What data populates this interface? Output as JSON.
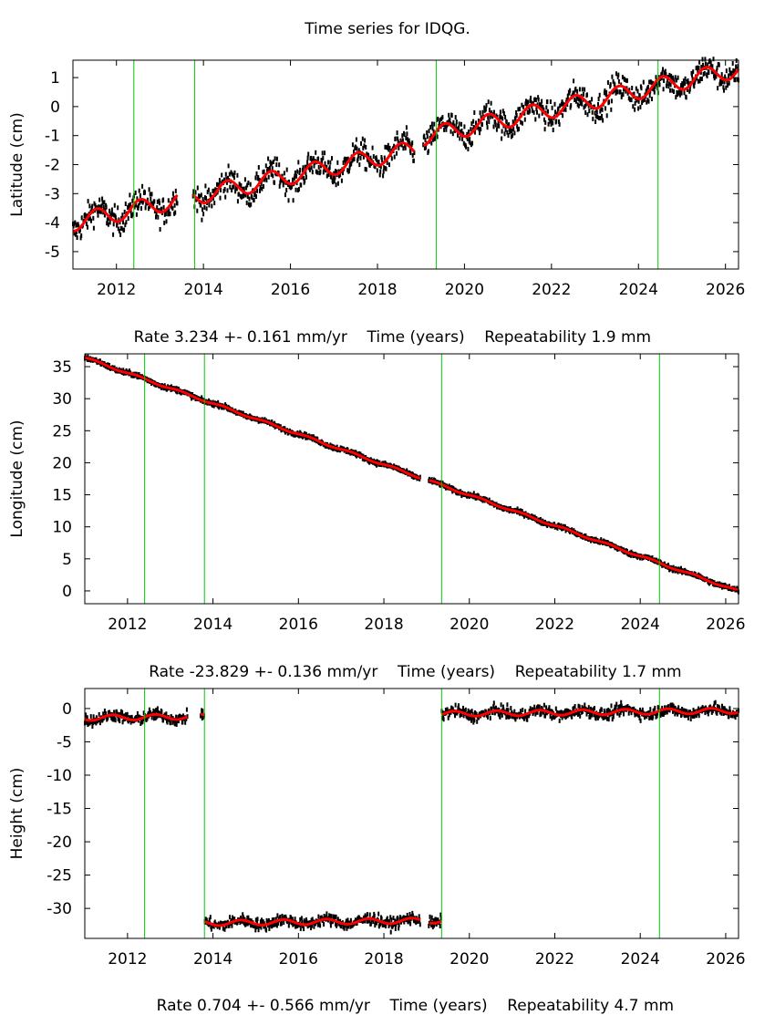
{
  "title": "Time series for IDQG.",
  "colors": {
    "data": "#000000",
    "model": "#ff0000",
    "offset_lines": "#00c800",
    "frame": "#000000"
  },
  "chart_data": [
    {
      "type": "scatter",
      "ylabel": "Latitude (cm)",
      "xlabel": "Time (years)",
      "caption": {
        "rate": "Rate 3.234 +- 0.161 mm/yr",
        "xlabel": "Time (years)",
        "repeatability": "Repeatability 1.9 mm"
      },
      "xlim": [
        2011.0,
        2026.3
      ],
      "ylim": [
        -5.6,
        1.6
      ],
      "xticks": [
        "2012",
        "2014",
        "2016",
        "2018",
        "2020",
        "2022",
        "2024",
        "2026"
      ],
      "yticks": [
        "1",
        "0",
        "-1",
        "-2",
        "-3",
        "-4",
        "-5"
      ],
      "offsets": [
        2012.4,
        2013.8,
        2019.35,
        2024.45
      ],
      "gaps": [
        [
          2013.4,
          2013.75
        ],
        [
          2018.85,
          2019.05
        ]
      ],
      "model_start": -4.0,
      "rate_cm_per_yr": 0.3234,
      "annual_amplitude": 0.3,
      "annual_phase": 2012.3,
      "segment_shifts": [
        {
          "after": 2019.0,
          "shift": 0.35
        }
      ],
      "scatter_cm": 0.45
    },
    {
      "type": "scatter",
      "ylabel": "Longitude (cm)",
      "xlabel": "Time (years)",
      "caption": {
        "rate": "Rate -23.829 +- 0.136 mm/yr",
        "xlabel": "Time (years)",
        "repeatability": "Repeatability 1.7 mm"
      },
      "xlim": [
        2011.0,
        2026.3
      ],
      "ylim": [
        -2.0,
        37.0
      ],
      "xticks": [
        "2012",
        "2014",
        "2016",
        "2018",
        "2020",
        "2022",
        "2024",
        "2026"
      ],
      "yticks": [
        "35",
        "30",
        "25",
        "20",
        "15",
        "10",
        "5",
        "0"
      ],
      "offsets": [
        2012.4,
        2013.8,
        2019.35,
        2024.45
      ],
      "gaps": [
        [
          2018.85,
          2019.05
        ]
      ],
      "model_start": 36.4,
      "rate_cm_per_yr": -2.3829,
      "annual_amplitude": 0.15,
      "annual_phase": 2012.0,
      "segment_shifts": [],
      "scatter_cm": 0.3
    },
    {
      "type": "scatter",
      "ylabel": "Height (cm)",
      "xlabel": "Time (years)",
      "caption": {
        "rate": "Rate 0.704 +- 0.566 mm/yr",
        "xlabel": "Time (years)",
        "repeatability": "Repeatability 4.7 mm"
      },
      "xlim": [
        2011.0,
        2026.3
      ],
      "ylim": [
        -34.5,
        3.0
      ],
      "xticks": [
        "2012",
        "2014",
        "2016",
        "2018",
        "2020",
        "2022",
        "2024",
        "2026"
      ],
      "yticks": [
        "0",
        "-5",
        "-10",
        "-15",
        "-20",
        "-25",
        "-30"
      ],
      "offsets": [
        2012.4,
        2013.8,
        2019.35,
        2024.45
      ],
      "gaps": [
        [
          2013.4,
          2013.7
        ],
        [
          2018.85,
          2019.05
        ]
      ],
      "model_start": -1.4,
      "rate_cm_per_yr": 0.0704,
      "annual_amplitude": 0.4,
      "annual_phase": 2012.4,
      "segment_shifts": [
        {
          "after": 2013.8,
          "shift": -31.0
        },
        {
          "after": 2019.35,
          "shift": 31.0
        }
      ],
      "scatter_cm": 0.8
    }
  ]
}
